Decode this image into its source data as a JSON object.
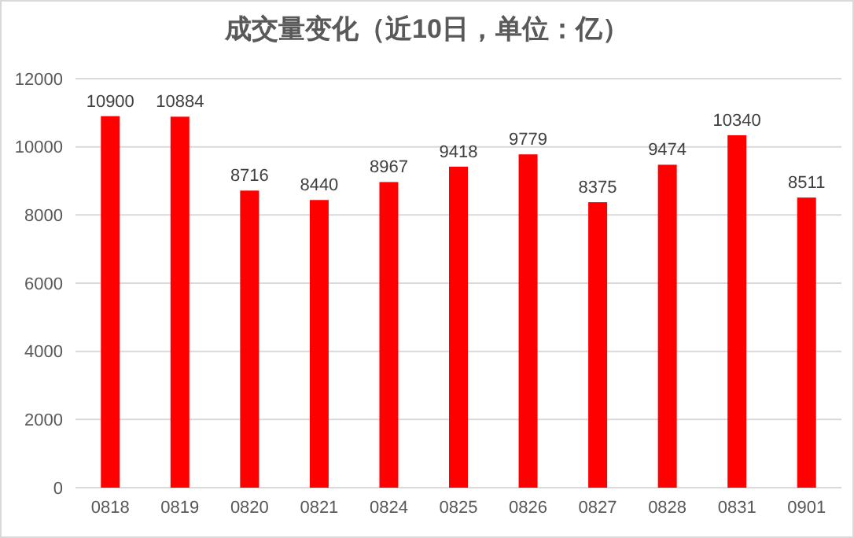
{
  "chart_data": {
    "type": "bar",
    "title": "成交量变化（近10日，单位：亿）",
    "categories": [
      "0818",
      "0819",
      "0820",
      "0821",
      "0824",
      "0825",
      "0826",
      "0827",
      "0828",
      "0831",
      "0901"
    ],
    "values": [
      10900,
      10884,
      8716,
      8440,
      8967,
      9418,
      9779,
      8375,
      9474,
      10340,
      8511
    ],
    "color": "#ff0000",
    "ylim": [
      0,
      12000
    ],
    "yticks": [
      0,
      2000,
      4000,
      6000,
      8000,
      10000,
      12000
    ],
    "grid": "y",
    "data_labels": true
  }
}
